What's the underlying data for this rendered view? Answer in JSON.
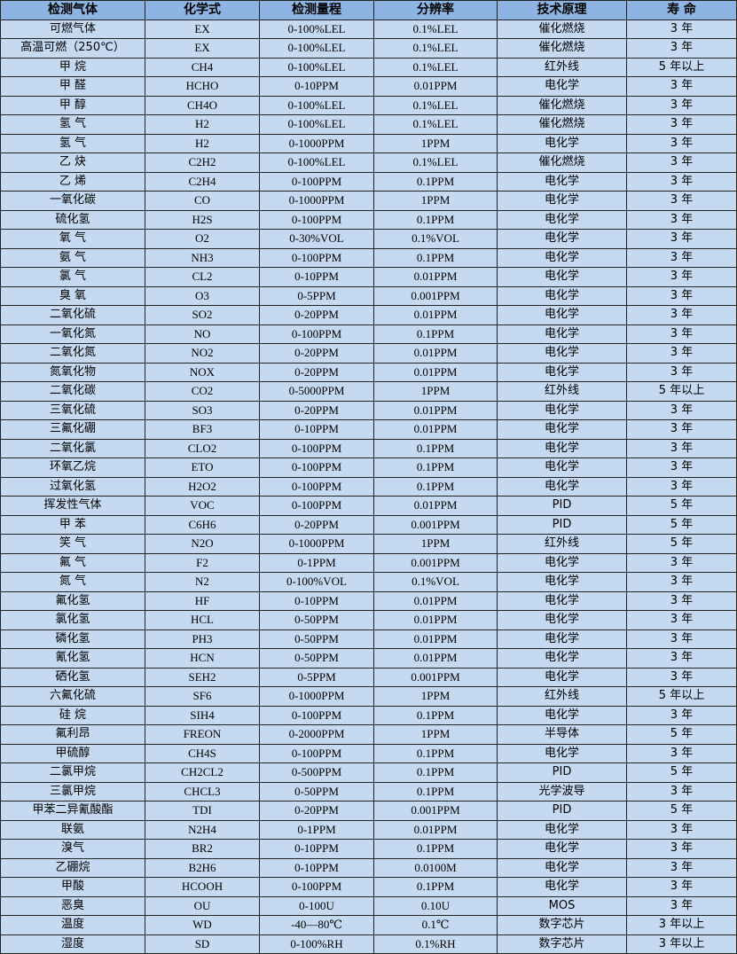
{
  "header": [
    "检测气体",
    "化学式",
    "检测量程",
    "分辨率",
    "技术原理",
    "寿 命"
  ],
  "rows": [
    [
      "可燃气体",
      "EX",
      "0-100%LEL",
      "0.1%LEL",
      "催化燃烧",
      "3 年"
    ],
    [
      "高温可燃（250℃）",
      "EX",
      "0-100%LEL",
      "0.1%LEL",
      "催化燃烧",
      "3 年"
    ],
    [
      "甲 烷",
      "CH4",
      "0-100%LEL",
      "0.1%LEL",
      "红外线",
      "5 年以上"
    ],
    [
      "甲 醛",
      "HCHO",
      "0-10PPM",
      "0.01PPM",
      "电化学",
      "3 年"
    ],
    [
      "甲 醇",
      "CH4O",
      "0-100%LEL",
      "0.1%LEL",
      "催化燃烧",
      "3 年"
    ],
    [
      "氢 气",
      "H2",
      "0-100%LEL",
      "0.1%LEL",
      "催化燃烧",
      "3 年"
    ],
    [
      "氢 气",
      "H2",
      "0-1000PPM",
      "1PPM",
      "电化学",
      "3 年"
    ],
    [
      "乙 炔",
      "C2H2",
      "0-100%LEL",
      "0.1%LEL",
      "催化燃烧",
      "3 年"
    ],
    [
      "乙 烯",
      "C2H4",
      "0-100PPM",
      "0.1PPM",
      "电化学",
      "3 年"
    ],
    [
      "一氧化碳",
      "CO",
      "0-1000PPM",
      "1PPM",
      "电化学",
      "3 年"
    ],
    [
      "硫化氢",
      "H2S",
      "0-100PPM",
      "0.1PPM",
      "电化学",
      "3 年"
    ],
    [
      "氧 气",
      "O2",
      "0-30%VOL",
      "0.1%VOL",
      "电化学",
      "3 年"
    ],
    [
      "氨 气",
      "NH3",
      "0-100PPM",
      "0.1PPM",
      "电化学",
      "3 年"
    ],
    [
      "氯 气",
      "CL2",
      "0-10PPM",
      "0.01PPM",
      "电化学",
      "3 年"
    ],
    [
      "臭 氧",
      "O3",
      "0-5PPM",
      "0.001PPM",
      "电化学",
      "3 年"
    ],
    [
      "二氧化硫",
      "SO2",
      "0-20PPM",
      "0.01PPM",
      "电化学",
      "3 年"
    ],
    [
      "一氧化氮",
      "NO",
      "0-100PPM",
      "0.1PPM",
      "电化学",
      "3 年"
    ],
    [
      "二氧化氮",
      "NO2",
      "0-20PPM",
      "0.01PPM",
      "电化学",
      "3 年"
    ],
    [
      "氮氧化物",
      "NOX",
      "0-20PPM",
      "0.01PPM",
      "电化学",
      "3 年"
    ],
    [
      "二氧化碳",
      "CO2",
      "0-5000PPM",
      "1PPM",
      "红外线",
      "5 年以上"
    ],
    [
      "三氧化硫",
      "SO3",
      "0-20PPM",
      "0.01PPM",
      "电化学",
      "3 年"
    ],
    [
      "三氟化硼",
      "BF3",
      "0-10PPM",
      "0.01PPM",
      "电化学",
      "3 年"
    ],
    [
      "二氧化氯",
      "CLO2",
      "0-100PPM",
      "0.1PPM",
      "电化学",
      "3 年"
    ],
    [
      "环氧乙烷",
      "ETO",
      "0-100PPM",
      "0.1PPM",
      "电化学",
      "3 年"
    ],
    [
      "过氧化氢",
      "H2O2",
      "0-100PPM",
      "0.1PPM",
      "电化学",
      "3 年"
    ],
    [
      "挥发性气体",
      "VOC",
      "0-100PPM",
      "0.01PPM",
      "PID",
      "5 年"
    ],
    [
      "甲 苯",
      "C6H6",
      "0-20PPM",
      "0.001PPM",
      "PID",
      "5 年"
    ],
    [
      "笑 气",
      "N2O",
      "0-1000PPM",
      "1PPM",
      "红外线",
      "5 年"
    ],
    [
      "氟 气",
      "F2",
      "0-1PPM",
      "0.001PPM",
      "电化学",
      "3 年"
    ],
    [
      "氮 气",
      "N2",
      "0-100%VOL",
      "0.1%VOL",
      "电化学",
      "3 年"
    ],
    [
      "氟化氢",
      "HF",
      "0-10PPM",
      "0.01PPM",
      "电化学",
      "3 年"
    ],
    [
      "氯化氢",
      "HCL",
      "0-50PPM",
      "0.01PPM",
      "电化学",
      "3 年"
    ],
    [
      "磷化氢",
      "PH3",
      "0-50PPM",
      "0.01PPM",
      "电化学",
      "3 年"
    ],
    [
      "氰化氢",
      "HCN",
      "0-50PPM",
      "0.01PPM",
      "电化学",
      "3 年"
    ],
    [
      "硒化氢",
      "SEH2",
      "0-5PPM",
      "0.001PPM",
      "电化学",
      "3 年"
    ],
    [
      "六氟化硫",
      "SF6",
      "0-1000PPM",
      "1PPM",
      "红外线",
      "5 年以上"
    ],
    [
      "硅 烷",
      "SIH4",
      "0-100PPM",
      "0.1PPM",
      "电化学",
      "3 年"
    ],
    [
      "氟利昂",
      "FREON",
      "0-2000PPM",
      "1PPM",
      "半导体",
      "5 年"
    ],
    [
      "甲硫醇",
      "CH4S",
      "0-100PPM",
      "0.1PPM",
      "电化学",
      "3 年"
    ],
    [
      "二氯甲烷",
      "CH2CL2",
      "0-500PPM",
      "0.1PPM",
      "PID",
      "5 年"
    ],
    [
      "三氯甲烷",
      "CHCL3",
      "0-50PPM",
      "0.1PPM",
      "光学波导",
      "3 年"
    ],
    [
      "甲苯二异氰酸酯",
      "TDI",
      "0-20PPM",
      "0.001PPM",
      "PID",
      "5 年"
    ],
    [
      "联氨",
      "N2H4",
      "0-1PPM",
      "0.01PPM",
      "电化学",
      "3 年"
    ],
    [
      "溴气",
      "BR2",
      "0-10PPM",
      "0.1PPM",
      "电化学",
      "3 年"
    ],
    [
      "乙硼烷",
      "B2H6",
      "0-10PPM",
      "0.0100M",
      "电化学",
      "3 年"
    ],
    [
      "甲酸",
      "HCOOH",
      "0-100PPM",
      "0.1PPM",
      "电化学",
      "3 年"
    ],
    [
      "恶臭",
      "OU",
      "0-100U",
      "0.10U",
      "MOS",
      "3 年"
    ],
    [
      "温度",
      "WD",
      "-40—80℃",
      "0.1℃",
      "数字芯片",
      "3 年以上"
    ],
    [
      "湿度",
      "SD",
      "0-100%RH",
      "0.1%RH",
      "数字芯片",
      "3 年以上"
    ]
  ],
  "colors": {
    "header_bg": "#8db4e2",
    "row_bg": "#c5d9f1",
    "border": "#222222"
  }
}
